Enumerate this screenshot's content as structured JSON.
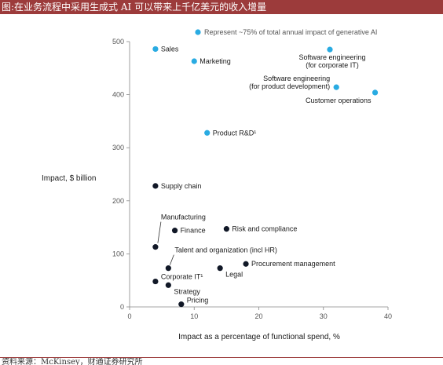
{
  "header": {
    "title": "图:在业务流程中采用生成式 AI 可以带来上千亿美元的收入增量"
  },
  "footer": {
    "source": "资料来源：McKinsey，财通证券研究所"
  },
  "colors": {
    "highlight": "#29abe2",
    "other": "#111827",
    "banner": "#9c3b3b"
  },
  "chart_data": {
    "type": "scatter",
    "title": "",
    "xlabel": "Impact as a percentage of functional spend, %",
    "ylabel": "Impact, $ billion",
    "xlim": [
      0,
      40
    ],
    "ylim": [
      0,
      500
    ],
    "xticks": [
      "0",
      "10",
      "20",
      "30",
      "40"
    ],
    "yticks": [
      "0",
      "100",
      "200",
      "300",
      "400",
      "500"
    ],
    "legend": {
      "label": "Represent ~75% of total annual impact of generative AI",
      "position": "top"
    },
    "points": [
      {
        "label": "Sales",
        "x": 4,
        "y": 486,
        "highlight": true
      },
      {
        "label": "Marketing",
        "x": 10,
        "y": 463,
        "highlight": true
      },
      {
        "label": "Software engineering\n(for corporate IT)",
        "x": 31,
        "y": 485,
        "highlight": true
      },
      {
        "label": "Software engineering\n(for product development)",
        "x": 32,
        "y": 414,
        "highlight": true
      },
      {
        "label": "Customer operations",
        "x": 38,
        "y": 404,
        "highlight": true
      },
      {
        "label": "Product R&D¹",
        "x": 12,
        "y": 328,
        "highlight": true
      },
      {
        "label": "Supply chain",
        "x": 4,
        "y": 228,
        "highlight": false
      },
      {
        "label": "Manufacturing",
        "x": 4,
        "y": 113,
        "highlight": false
      },
      {
        "label": "Finance",
        "x": 7,
        "y": 144,
        "highlight": false
      },
      {
        "label": "Risk and compliance",
        "x": 15,
        "y": 147,
        "highlight": false
      },
      {
        "label": "Talent and organization (incl HR)",
        "x": 6,
        "y": 73,
        "highlight": false
      },
      {
        "label": "Procurement management",
        "x": 18,
        "y": 81,
        "highlight": false
      },
      {
        "label": "Legal",
        "x": 14,
        "y": 73,
        "highlight": false
      },
      {
        "label": "Corporate IT¹",
        "x": 4,
        "y": 48,
        "highlight": false
      },
      {
        "label": "Strategy",
        "x": 6,
        "y": 41,
        "highlight": false
      },
      {
        "label": "Pricing",
        "x": 8,
        "y": 5,
        "highlight": false
      }
    ]
  }
}
